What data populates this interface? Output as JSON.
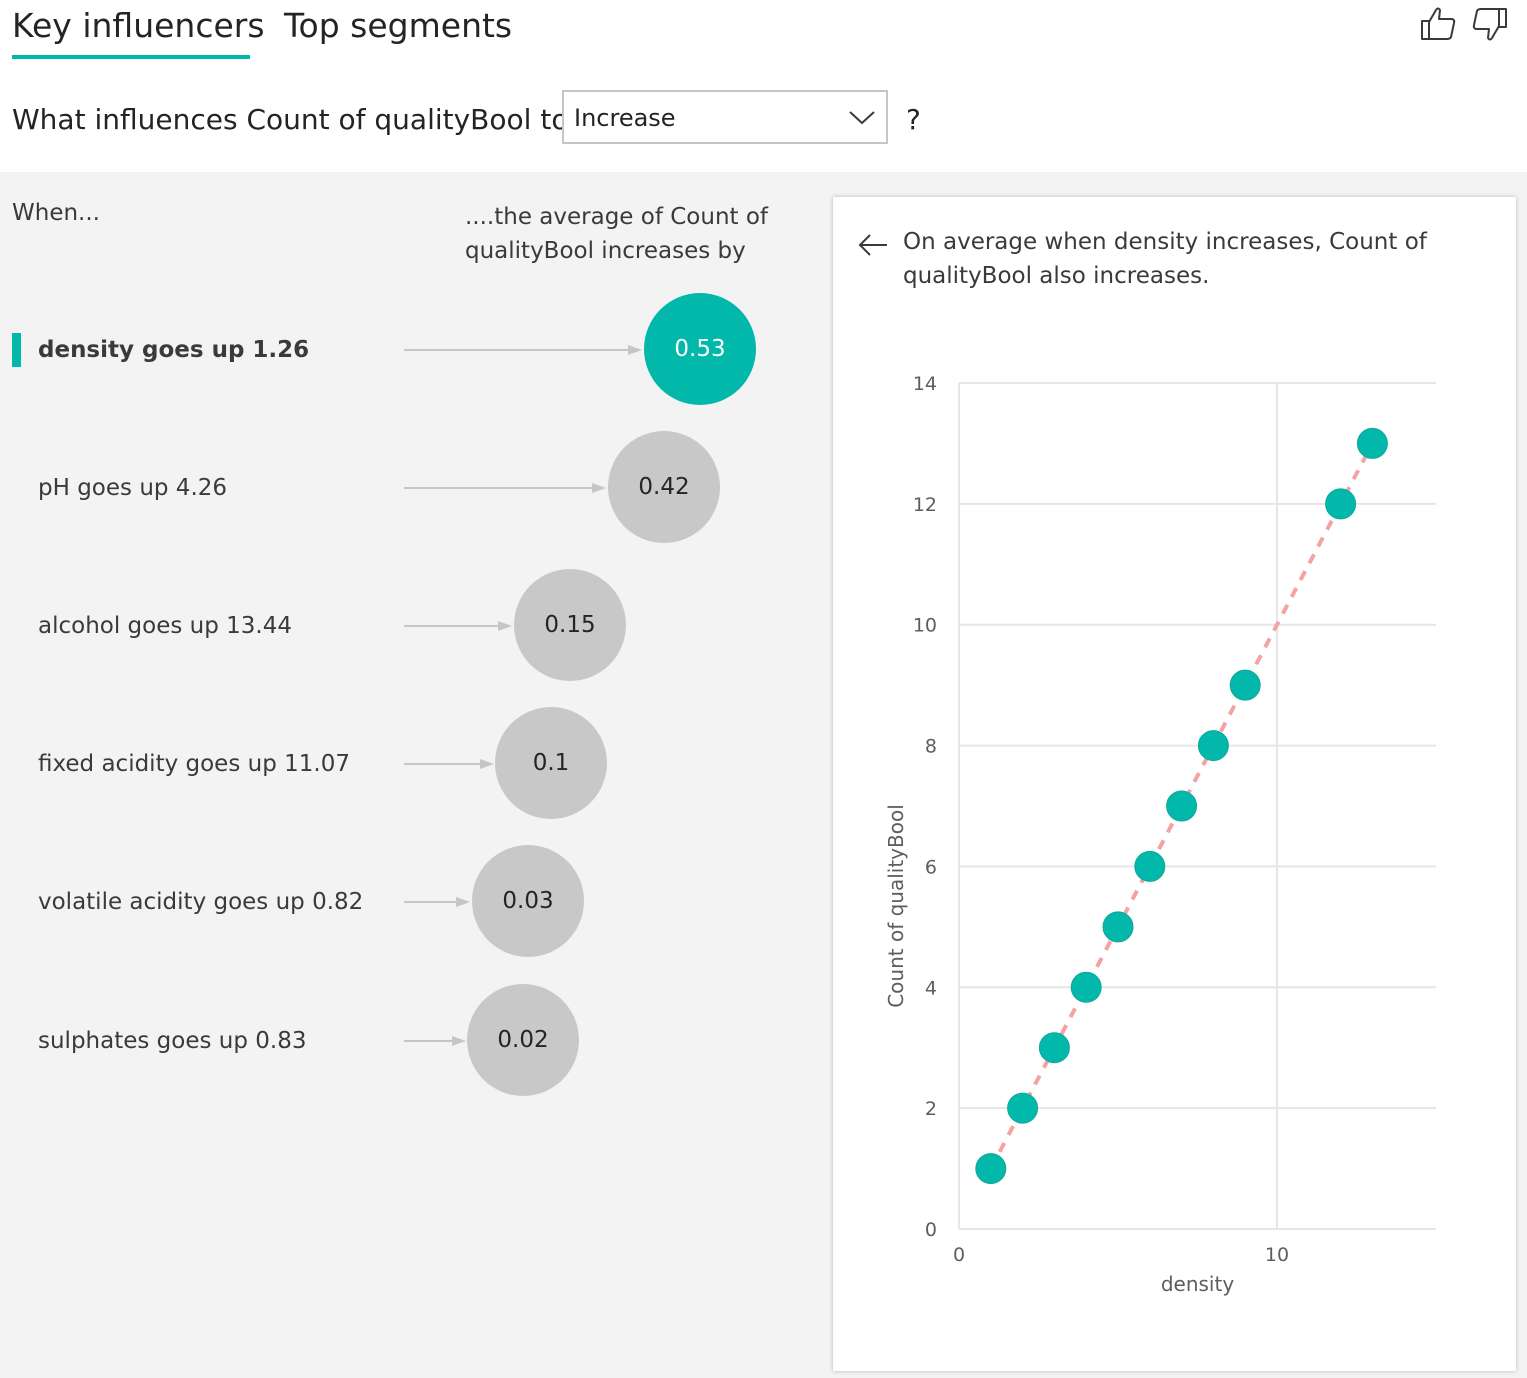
{
  "tabs": {
    "key_influencers": "Key influencers",
    "top_segments": "Top segments",
    "active": "key_influencers"
  },
  "feedback": {
    "thumbs_up_icon": "thumbs-up-icon",
    "thumbs_down_icon": "thumbs-down-icon"
  },
  "question": {
    "prefix": "What influences Count of qualityBool to",
    "dropdown_value": "Increase",
    "suffix": "?"
  },
  "columns": {
    "when": "When...",
    "average": "....the average of Count of qualityBool increases by"
  },
  "influencers": [
    {
      "label": "density goes up 1.26",
      "value": "0.53",
      "selected": true
    },
    {
      "label": "pH goes up 4.26",
      "value": "0.42",
      "selected": false
    },
    {
      "label": "alcohol goes up 13.44",
      "value": "0.15",
      "selected": false
    },
    {
      "label": "fixed acidity goes up 11.07",
      "value": "0.1",
      "selected": false
    },
    {
      "label": "volatile acidity goes up 0.82",
      "value": "0.03",
      "selected": false
    },
    {
      "label": "sulphates goes up 0.83",
      "value": "0.02",
      "selected": false
    }
  ],
  "detail": {
    "description": "On average when density increases, Count of qualityBool also increases."
  },
  "colors": {
    "accent": "#01b8aa",
    "bubble_inactive": "#c8c8c8",
    "trend_line": "#f4a3a3",
    "panel_bg": "#f3f3f3"
  },
  "chart_data": {
    "type": "scatter",
    "xlabel": "density",
    "ylabel": "Count of qualityBool",
    "xlim": [
      0,
      15
    ],
    "ylim": [
      0,
      14
    ],
    "x_ticks": [
      "0",
      "10"
    ],
    "y_ticks": [
      "0",
      "2",
      "4",
      "6",
      "8",
      "10",
      "12",
      "14"
    ],
    "grid": true,
    "points": [
      {
        "x": 1,
        "y": 1
      },
      {
        "x": 2,
        "y": 2
      },
      {
        "x": 3,
        "y": 3
      },
      {
        "x": 4,
        "y": 4
      },
      {
        "x": 5,
        "y": 5
      },
      {
        "x": 6,
        "y": 6
      },
      {
        "x": 7,
        "y": 7
      },
      {
        "x": 8,
        "y": 8
      },
      {
        "x": 9,
        "y": 9
      },
      {
        "x": 12,
        "y": 12
      },
      {
        "x": 13,
        "y": 13
      }
    ],
    "trend_line": {
      "x1": 1,
      "y1": 1,
      "x2": 13,
      "y2": 13
    }
  }
}
